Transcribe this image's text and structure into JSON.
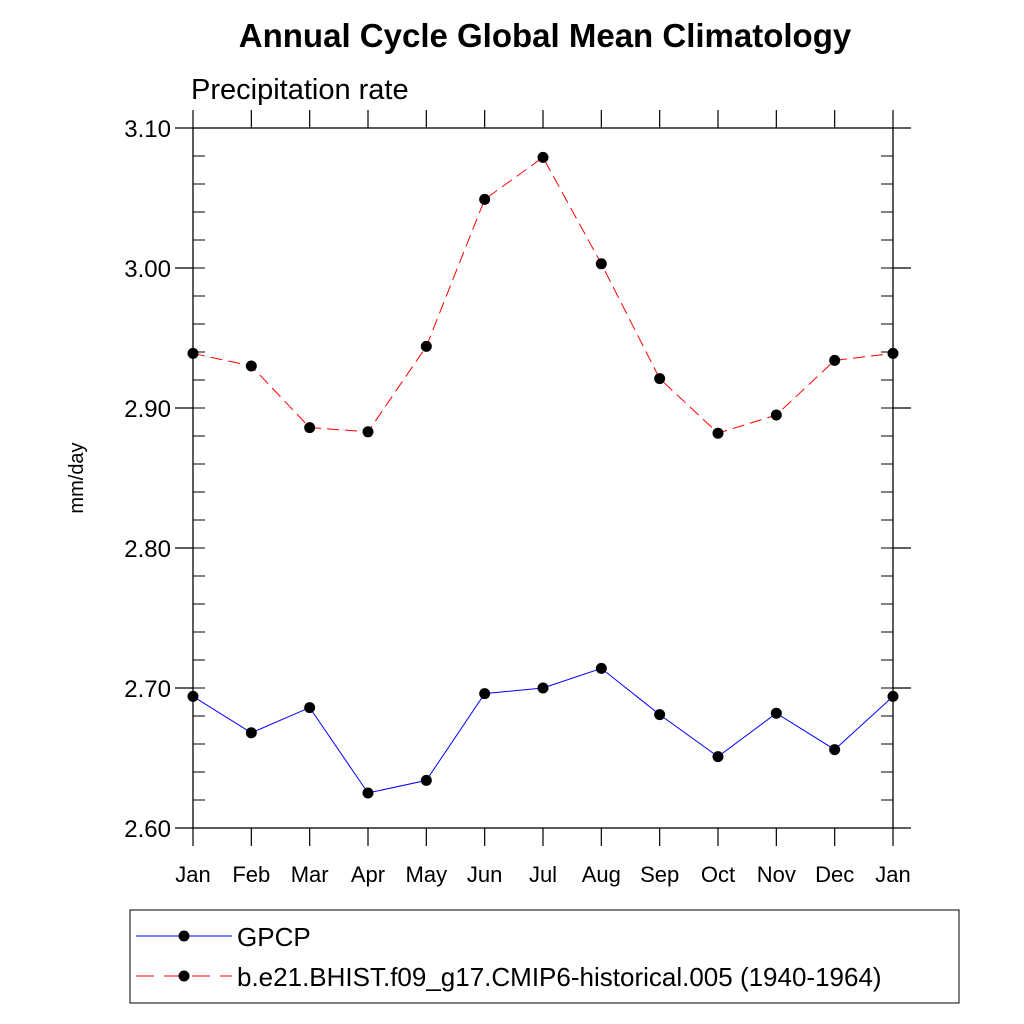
{
  "chart_data": {
    "type": "line",
    "title": "Annual Cycle Global Mean Climatology",
    "subtitle": "Precipitation rate",
    "xlabel": "",
    "ylabel": "mm/day",
    "categories": [
      "Jan",
      "Feb",
      "Mar",
      "Apr",
      "May",
      "Jun",
      "Jul",
      "Aug",
      "Sep",
      "Oct",
      "Nov",
      "Dec",
      "Jan"
    ],
    "ylim": [
      2.6,
      3.1
    ],
    "yticks": [
      "2.60",
      "2.70",
      "2.80",
      "2.90",
      "3.00",
      "3.10"
    ],
    "grid": false,
    "legend_position": "bottom",
    "series": [
      {
        "name": "GPCP",
        "color": "#0000ff",
        "dash": "solid",
        "values": [
          2.694,
          2.668,
          2.686,
          2.625,
          2.634,
          2.696,
          2.7,
          2.714,
          2.681,
          2.651,
          2.682,
          2.656,
          2.694
        ]
      },
      {
        "name": "b.e21.BHIST.f09_g17.CMIP6-historical.005 (1940-1964)",
        "color": "#ff0000",
        "dash": "dashed",
        "values": [
          2.939,
          2.93,
          2.886,
          2.883,
          2.944,
          3.049,
          3.079,
          3.003,
          2.921,
          2.882,
          2.895,
          2.934,
          2.939
        ]
      }
    ]
  }
}
